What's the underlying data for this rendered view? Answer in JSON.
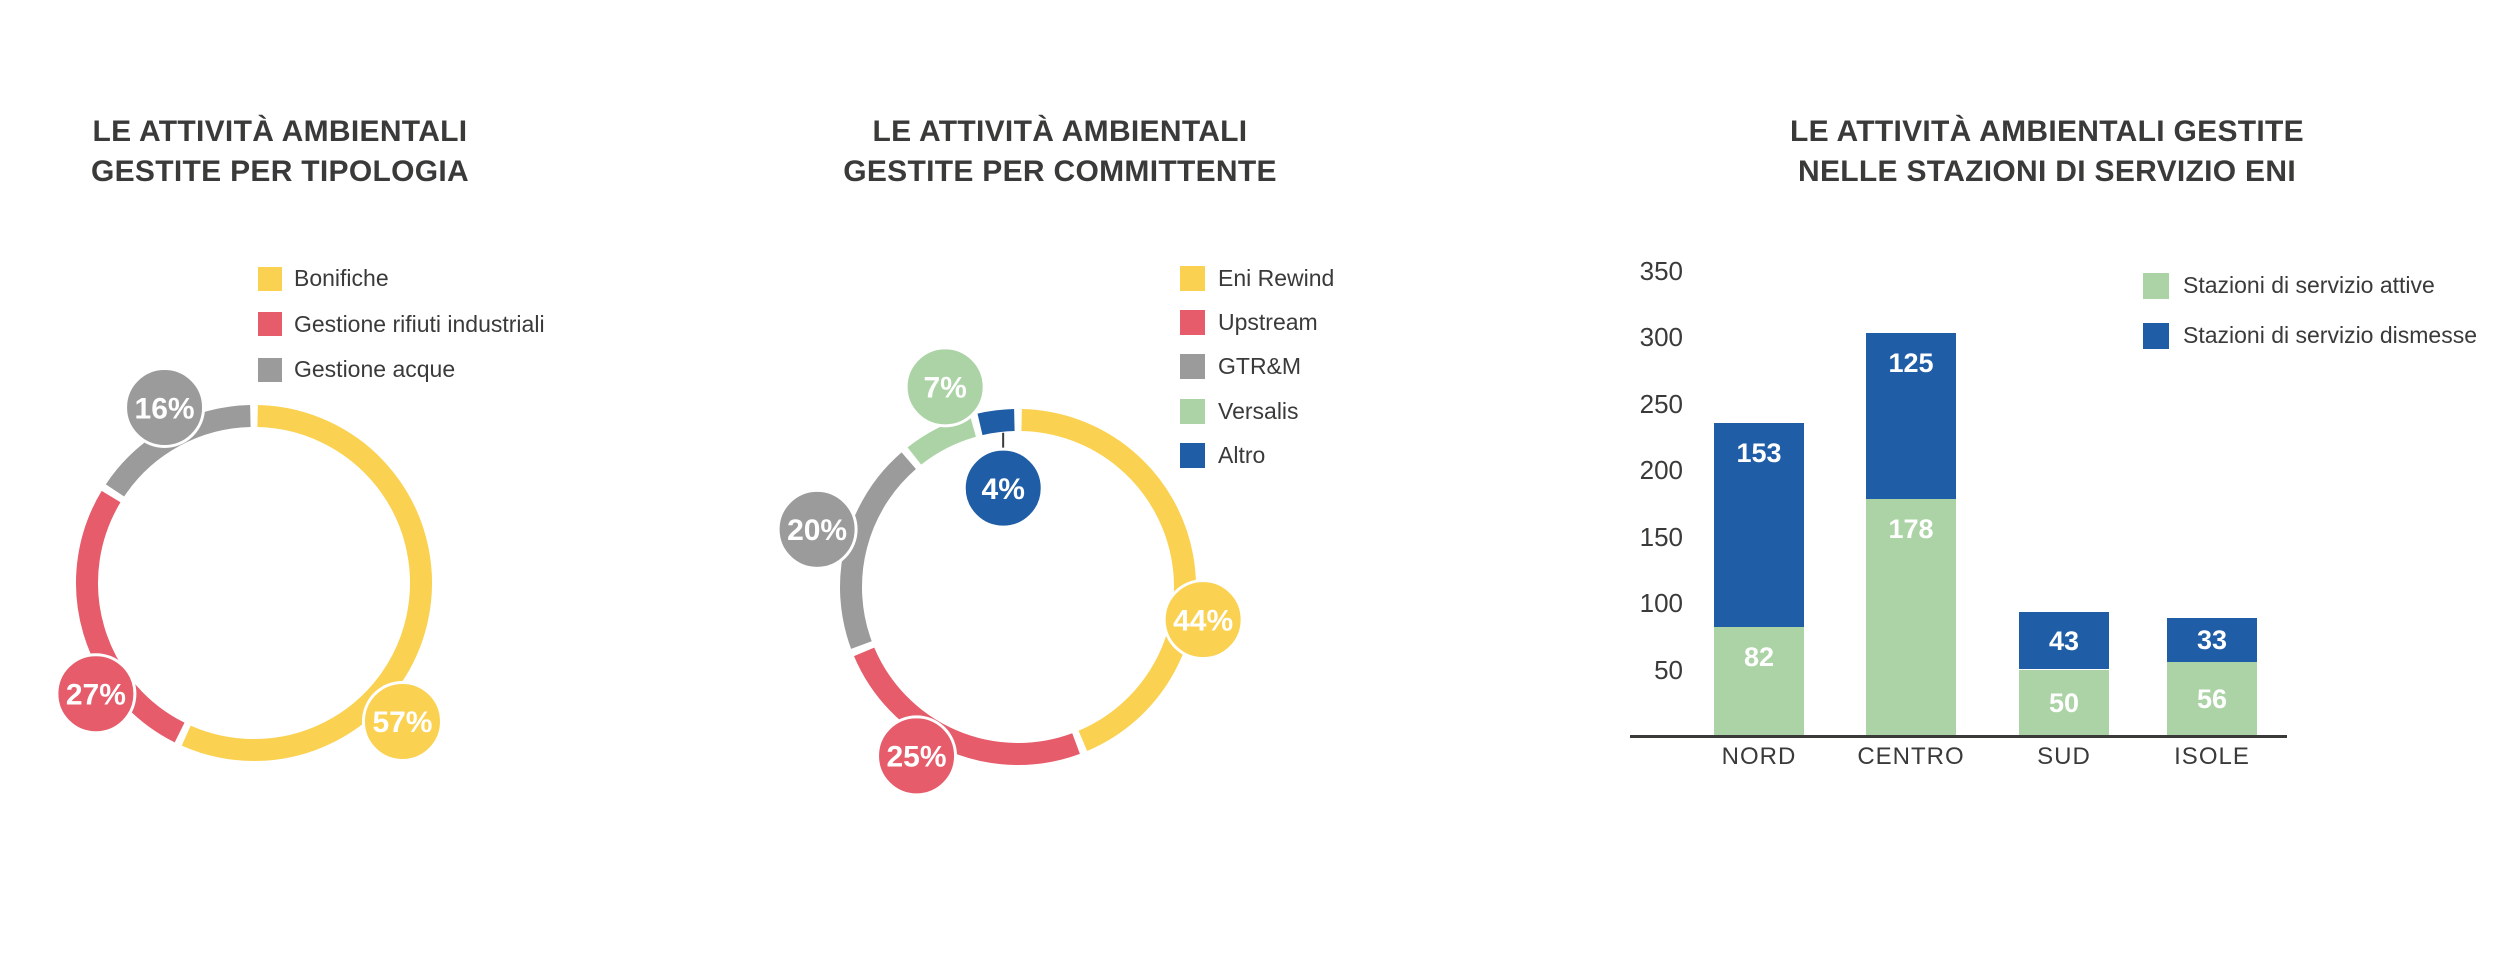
{
  "page": {
    "background": "#ffffff",
    "text_color": "#3a3a39"
  },
  "chart_data": [
    {
      "type": "donut",
      "title": "LE ATTIVITÀ AMBIENTALI GESTITE PER TIPOLOGIA",
      "title_lines": {
        "line1": "LE ATTIVITÀ AMBIENTALI",
        "line2": "GESTITE PER TIPOLOGIA"
      },
      "unit": "%",
      "legend_position": "top-right-of-donut",
      "segments": [
        {
          "name": "Bonifiche",
          "value": 57,
          "display": "57%",
          "color": "#fad150",
          "label_angle": 133,
          "label_dist": 203
        },
        {
          "name": "Gestione rifiuti industriali",
          "value": 27,
          "display": "27%",
          "color": "#e65c6b",
          "label_angle": 235,
          "label_dist": 193
        },
        {
          "name": "Gestione acque",
          "value": 16,
          "display": "16%",
          "color": "#9c9b9b",
          "label_angle": 333,
          "label_dist": 197
        }
      ]
    },
    {
      "type": "donut",
      "title": "LE ATTIVITÀ AMBIENTALI GESTITE PER COMMITTENTE",
      "title_lines": {
        "line1": "LE ATTIVITÀ AMBIENTALI",
        "line2": "GESTITE PER COMMITTENTE"
      },
      "unit": "%",
      "legend_position": "top-right-of-donut",
      "segments": [
        {
          "name": "Eni Rewind",
          "value": 44,
          "display": "44%",
          "color": "#fad150",
          "label_angle": 100,
          "label_dist": 188
        },
        {
          "name": "Upstream",
          "value": 25,
          "display": "25%",
          "color": "#e65c6b",
          "label_angle": 211,
          "label_dist": 197
        },
        {
          "name": "GTR&M",
          "value": 20,
          "display": "20%",
          "color": "#9c9b9b",
          "label_angle": 286,
          "label_dist": 209
        },
        {
          "name": "Versalis",
          "value": 7,
          "display": "7%",
          "color": "#abd3a5",
          "label_angle": 340,
          "label_dist": 213
        },
        {
          "name": "Altro",
          "value": 4,
          "display": "4%",
          "color": "#1f5da6",
          "label_angle": 351.5,
          "label_dist": 100,
          "leader": {
            "angle": 354.5,
            "dist": 155
          }
        }
      ]
    },
    {
      "type": "stacked-bar",
      "title": "LE ATTIVITÀ AMBIENTALI GESTITE NELLE STAZIONI DI SERVIZIO ENI",
      "title_lines": {
        "line1": "LE ATTIVITÀ AMBIENTALI GESTITE",
        "line2": "NELLE STAZIONI DI SERVIZIO ENI"
      },
      "categories": [
        "NORD",
        "CENTRO",
        "SUD",
        "ISOLE"
      ],
      "series": [
        {
          "name": "Stazioni di servizio attive",
          "color": "#abd3a5",
          "values": [
            82,
            178,
            50,
            56
          ]
        },
        {
          "name": "Stazioni di servizio dismesse",
          "color": "#1f5da6",
          "values": [
            153,
            125,
            43,
            33
          ]
        }
      ],
      "totals": [
        235,
        303,
        93,
        89
      ],
      "y_ticks": [
        350,
        300,
        250,
        200,
        150,
        100,
        50
      ],
      "ylim": [
        0,
        350
      ],
      "grid": false,
      "legend_position": "top-right",
      "value_labels": "white-inside-segments"
    }
  ]
}
